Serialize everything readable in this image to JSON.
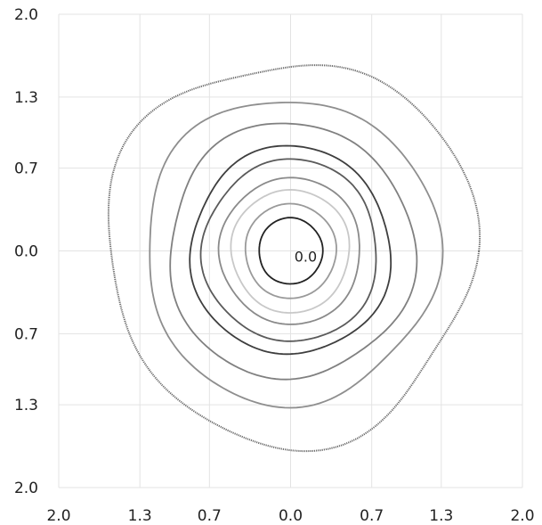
{
  "chart_data": {
    "type": "contour",
    "title": "",
    "xlabel": "",
    "ylabel": "",
    "grid": true,
    "x_ticks": [
      "2.0",
      "1.3",
      "0.7",
      "0.0",
      "0.7",
      "1.3",
      "2.0"
    ],
    "y_ticks": [
      "2.0",
      "1.3",
      "0.7",
      "0.0",
      "0.7",
      "1.3",
      "2.0"
    ],
    "x_tick_values": [
      -2.0,
      -1.3,
      -0.7,
      0.0,
      0.7,
      1.3,
      2.0
    ],
    "y_tick_values": [
      2.0,
      1.3,
      0.7,
      0.0,
      -0.7,
      -1.3,
      -2.0
    ],
    "xlim": [
      -2.0,
      2.0
    ],
    "ylim": [
      -2.0,
      2.0
    ],
    "annotations": [
      {
        "text": "0.0",
        "x": 0.13,
        "y": -0.09
      }
    ],
    "contours": [
      {
        "radius": 1.62,
        "wobble": 0.04,
        "color": "#6a6a6a",
        "dotted": true
      },
      {
        "radius": 1.29,
        "wobble": 0.03,
        "color": "#8e8e8e",
        "dotted": false
      },
      {
        "radius": 1.08,
        "wobble": 0.025,
        "color": "#808080",
        "dotted": false
      },
      {
        "radius": 0.88,
        "wobble": 0.02,
        "color": "#3e3e3e",
        "dotted": false
      },
      {
        "radius": 0.77,
        "wobble": 0.02,
        "color": "#5a5a5a",
        "dotted": false
      },
      {
        "radius": 0.62,
        "wobble": 0.015,
        "color": "#8a8a8a",
        "dotted": false
      },
      {
        "radius": 0.52,
        "wobble": 0.015,
        "color": "#c8c8c8",
        "dotted": false
      },
      {
        "radius": 0.4,
        "wobble": 0.01,
        "color": "#9a9a9a",
        "dotted": false
      },
      {
        "radius": 0.28,
        "wobble": 0.01,
        "color": "#222222",
        "dotted": false
      }
    ]
  }
}
